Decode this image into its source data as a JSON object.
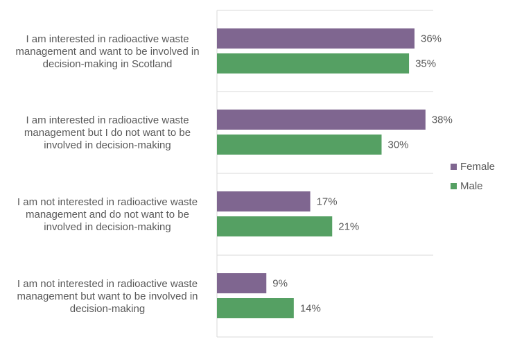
{
  "chart_data": {
    "type": "bar",
    "orientation": "horizontal",
    "categories": [
      "I am interested in radioactive waste management and want to be involved in decision-making in Scotland",
      "I am interested in radioactive waste management but I do not want to be involved in decision-making",
      "I am not interested in radioactive waste management and do not want to be involved in decision-making",
      "I am not interested in radioactive waste management but want to be involved in decision-making"
    ],
    "category_lines": [
      [
        "I am interested in radioactive waste",
        "management and want to be involved in",
        "decision-making in Scotland"
      ],
      [
        "I am interested in radioactive waste",
        "management but I do not want to be",
        "involved in decision-making"
      ],
      [
        "I am not interested in radioactive waste",
        "management and do not want to be",
        "involved in decision-making"
      ],
      [
        "I am not interested in radioactive waste",
        "management but want to be involved in",
        "decision-making"
      ]
    ],
    "series": [
      {
        "name": "Female",
        "color": "#7f6690",
        "values": [
          36,
          38,
          17,
          9
        ]
      },
      {
        "name": "Male",
        "color": "#55a063",
        "values": [
          35,
          30,
          21,
          14
        ]
      }
    ],
    "value_suffix": "%",
    "xlim": [
      0,
      40
    ],
    "legend_position": "right",
    "grid": false
  }
}
